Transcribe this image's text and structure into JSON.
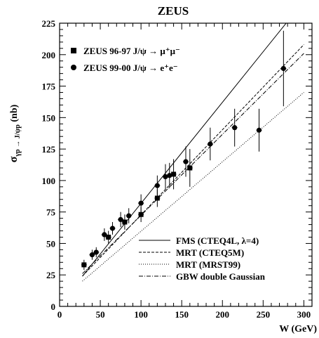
{
  "chart_data": {
    "type": "scatter",
    "title": "ZEUS",
    "xlabel": "W (GeV)",
    "ylabel": "σ_{γp → J/ψp} (nb)",
    "ylabel_main": "σ",
    "ylabel_sub": "γp → J/ψp",
    "ylabel_unit": " (nb)",
    "xlim": [
      0,
      310
    ],
    "ylim": [
      0,
      225
    ],
    "xticks": [
      0,
      50,
      100,
      150,
      200,
      250,
      300
    ],
    "yticks": [
      0,
      25,
      50,
      75,
      100,
      125,
      150,
      175,
      200,
      225
    ],
    "grid": false,
    "legend_data_position": "top-left",
    "legend_theory_position": "bottom-right",
    "data_series": [
      {
        "name": "ZEUS 96-97 J/ψ → μ⁺μ⁻",
        "marker": "square",
        "x": [
          30,
          60,
          80,
          100,
          120,
          140,
          160
        ],
        "y": [
          33,
          55,
          67,
          73,
          86,
          105,
          110
        ],
        "err": [
          4,
          5,
          6,
          6,
          7,
          12,
          15
        ]
      },
      {
        "name": "ZEUS 99-00 J/ψ → e⁺e⁻",
        "marker": "circle",
        "x": [
          40,
          45,
          55,
          65,
          75,
          85,
          100,
          120,
          130,
          135,
          155,
          185,
          215,
          245,
          275
        ],
        "y": [
          41,
          43,
          57,
          62,
          69,
          72,
          82,
          96,
          103,
          104,
          115,
          129,
          142,
          140,
          189
        ],
        "err": [
          4,
          4,
          5,
          5,
          6,
          6,
          7,
          8,
          10,
          10,
          12,
          13,
          15,
          17,
          30
        ]
      }
    ],
    "curves": [
      {
        "name": "FMS (CTEQ4L, λ=4)",
        "dash": "solid",
        "x": [
          28,
          282
        ],
        "y": [
          24,
          228
        ]
      },
      {
        "name": "MRT (CTEQ5M)",
        "dash": "dashed",
        "x": [
          28,
          300
        ],
        "y": [
          24,
          208
        ]
      },
      {
        "name": "MRT (MRST99)",
        "dash": "dotted",
        "x": [
          28,
          300
        ],
        "y": [
          20,
          170
        ]
      },
      {
        "name": "GBW double Gaussian",
        "dash": "dashdot",
        "x": [
          28,
          300
        ],
        "y": [
          26,
          201
        ]
      }
    ]
  }
}
